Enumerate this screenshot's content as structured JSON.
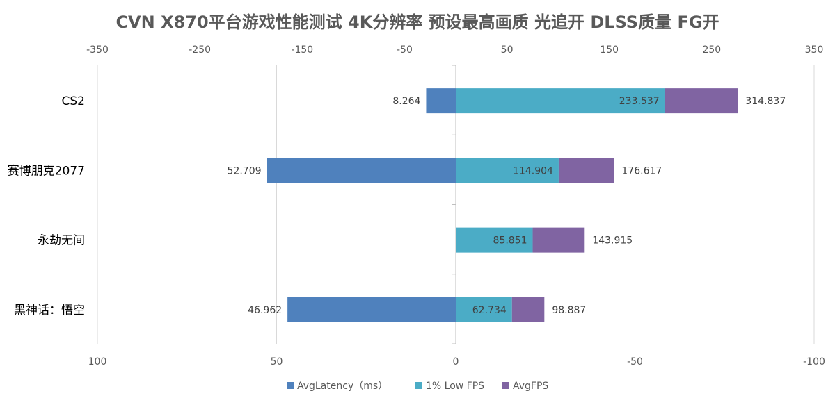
{
  "chart_data": {
    "type": "bar",
    "title": "CVN X870平台游戏性能测试 4K分辨率 预设最高画质 光追开 DLSS质量 FG开",
    "categories": [
      "CS2",
      "赛博朋克2077",
      "永劫无间",
      "黑神话：悟空"
    ],
    "series": [
      {
        "name": "AvgLatency（ms）",
        "values": [
          8.264,
          52.709,
          null,
          46.962
        ],
        "color": "#4F81BD",
        "axis": "bottom-reversed"
      },
      {
        "name": "1% Low FPS",
        "values": [
          233.537,
          114.904,
          85.851,
          62.734
        ],
        "color": "#4BACC6",
        "axis": "top"
      },
      {
        "name": "AvgFPS",
        "values": [
          314.837,
          176.617,
          143.915,
          98.887
        ],
        "color": "#8064A2",
        "axis": "top"
      }
    ],
    "labels": {
      "latency": [
        "8.264",
        "52.709",
        "",
        "46.962"
      ],
      "low": [
        "233.537",
        "114.904",
        "85.851",
        "62.734"
      ],
      "avg": [
        "314.837",
        "176.617",
        "143.915",
        "98.887"
      ]
    },
    "top_axis": {
      "range": [
        -350,
        350
      ],
      "ticks": [
        "-350",
        "-250",
        "-150",
        "-50",
        "50",
        "150",
        "250",
        "350"
      ]
    },
    "bottom_axis": {
      "range": [
        100,
        -100
      ],
      "ticks": [
        "100",
        "50",
        "0",
        "-50",
        "-100"
      ]
    },
    "grid": true,
    "legend": "bottom"
  }
}
